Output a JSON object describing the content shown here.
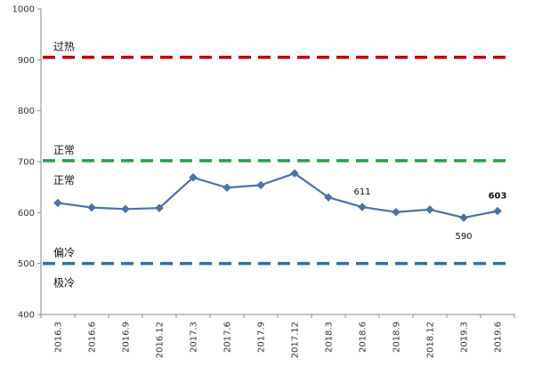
{
  "chart_data": {
    "type": "line",
    "title": "",
    "xlabel": "",
    "ylabel": "",
    "ylim": [
      400,
      1000
    ],
    "yticks": [
      400,
      500,
      600,
      700,
      800,
      900,
      1000
    ],
    "categories": [
      "2016.3",
      "2016.6",
      "2016.9",
      "2016.12",
      "2017.3",
      "2017.6",
      "2017.9",
      "2017.12",
      "2018.3",
      "2018.6",
      "2018.9",
      "2018.12",
      "2019.3",
      "2019.6"
    ],
    "series": [
      {
        "values": [
          619,
          610,
          607,
          609,
          669,
          649,
          654,
          677,
          630,
          611,
          601,
          606,
          590,
          603
        ],
        "color": "#4a72a6",
        "marker": "diamond"
      }
    ],
    "data_labels": [
      {
        "index": 9,
        "text": "611",
        "bold": false,
        "position": "above"
      },
      {
        "index": 12,
        "text": "590",
        "bold": false,
        "position": "below"
      },
      {
        "index": 13,
        "text": "603",
        "bold": true,
        "position": "above"
      }
    ],
    "reference_lines": [
      {
        "value": 905,
        "color": "#c00000",
        "style": "dashed"
      },
      {
        "value": 702,
        "color": "#2e9a4e",
        "style": "dashed"
      },
      {
        "value": 500,
        "color": "#2f6fb0",
        "style": "dashed"
      }
    ],
    "zone_labels": [
      {
        "text": "过热",
        "anchor_value": 905,
        "position": "above"
      },
      {
        "text": "正常",
        "anchor_value": 702,
        "position": "above"
      },
      {
        "text": "正常",
        "anchor_value": 702,
        "position": "below"
      },
      {
        "text": "偏冷",
        "anchor_value": 500,
        "position": "above"
      },
      {
        "text": "极冷",
        "anchor_value": 500,
        "position": "below"
      }
    ],
    "grid": false,
    "legend": "none"
  }
}
